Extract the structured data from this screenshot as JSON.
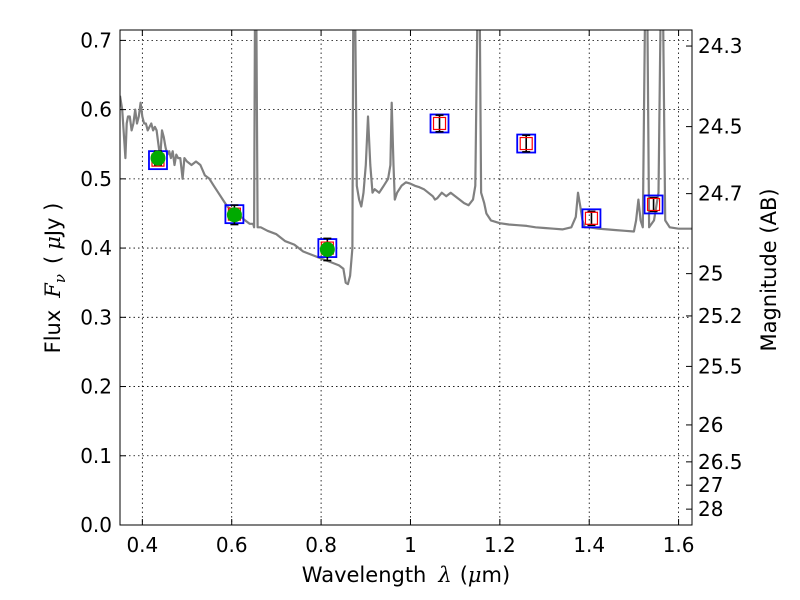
{
  "chart_data": {
    "type": "scatter",
    "title": "",
    "xlabel": {
      "prefix": "Wavelength",
      "symbol": "λ",
      "open": "(",
      "mu": "μ",
      "unit": "m)"
    },
    "ylabel": {
      "prefix": "Flux",
      "symbol": "F",
      "subscript": "ν",
      "open": "(",
      "mu": "μ",
      "unit": "Jy )"
    },
    "y2label": "Magnitude (AB)",
    "xlim": [
      0.35,
      1.63
    ],
    "ylim": [
      0.0,
      0.715
    ],
    "grid": true,
    "x_ticks": [
      {
        "v": 0.4,
        "label": "0.4"
      },
      {
        "v": 0.6,
        "label": "0.6"
      },
      {
        "v": 0.8,
        "label": "0.8"
      },
      {
        "v": 1.0,
        "label": "1"
      },
      {
        "v": 1.2,
        "label": "1.2"
      },
      {
        "v": 1.4,
        "label": "1.4"
      },
      {
        "v": 1.6,
        "label": "1.6"
      }
    ],
    "y_ticks": [
      {
        "v": 0.0,
        "label": "0.0"
      },
      {
        "v": 0.1,
        "label": "0.1"
      },
      {
        "v": 0.2,
        "label": "0.2"
      },
      {
        "v": 0.3,
        "label": "0.3"
      },
      {
        "v": 0.4,
        "label": "0.4"
      },
      {
        "v": 0.5,
        "label": "0.5"
      },
      {
        "v": 0.6,
        "label": "0.6"
      },
      {
        "v": 0.7,
        "label": "0.7"
      }
    ],
    "y2_ticks": [
      {
        "mag": 24.3,
        "label": "24.3"
      },
      {
        "mag": 24.5,
        "label": "24.5"
      },
      {
        "mag": 24.7,
        "label": "24.7"
      },
      {
        "mag": 25.0,
        "label": "25"
      },
      {
        "mag": 25.2,
        "label": "25.2"
      },
      {
        "mag": 25.5,
        "label": "25.5"
      },
      {
        "mag": 26.0,
        "label": "26"
      },
      {
        "mag": 26.5,
        "label": "26.5"
      },
      {
        "mag": 27.0,
        "label": "27"
      },
      {
        "mag": 28.0,
        "label": "28"
      }
    ],
    "colors": {
      "model": "#808080",
      "detected_box": "#0000ff",
      "model_point": "#ff0000",
      "detection_fill": "#00aa00",
      "grid": "#000000"
    },
    "series": [
      {
        "name": "model spectrum",
        "style": "line",
        "points": [
          [
            0.35,
            0.62
          ],
          [
            0.355,
            0.6
          ],
          [
            0.36,
            0.55
          ],
          [
            0.362,
            0.53
          ],
          [
            0.365,
            0.58
          ],
          [
            0.368,
            0.59
          ],
          [
            0.372,
            0.59
          ],
          [
            0.376,
            0.57
          ],
          [
            0.38,
            0.58
          ],
          [
            0.384,
            0.6
          ],
          [
            0.388,
            0.58
          ],
          [
            0.392,
            0.59
          ],
          [
            0.396,
            0.61
          ],
          [
            0.4,
            0.59
          ],
          [
            0.404,
            0.58
          ],
          [
            0.408,
            0.58
          ],
          [
            0.412,
            0.57
          ],
          [
            0.416,
            0.575
          ],
          [
            0.42,
            0.58
          ],
          [
            0.424,
            0.57
          ],
          [
            0.428,
            0.575
          ],
          [
            0.432,
            0.57
          ],
          [
            0.436,
            0.55
          ],
          [
            0.44,
            0.53
          ],
          [
            0.444,
            0.57
          ],
          [
            0.448,
            0.56
          ],
          [
            0.452,
            0.545
          ],
          [
            0.456,
            0.535
          ],
          [
            0.46,
            0.54
          ],
          [
            0.464,
            0.53
          ],
          [
            0.468,
            0.54
          ],
          [
            0.472,
            0.52
          ],
          [
            0.476,
            0.535
          ],
          [
            0.48,
            0.53
          ],
          [
            0.485,
            0.53
          ],
          [
            0.49,
            0.5
          ],
          [
            0.494,
            0.53
          ],
          [
            0.5,
            0.525
          ],
          [
            0.51,
            0.52
          ],
          [
            0.52,
            0.525
          ],
          [
            0.53,
            0.52
          ],
          [
            0.54,
            0.505
          ],
          [
            0.55,
            0.5
          ],
          [
            0.56,
            0.49
          ],
          [
            0.57,
            0.48
          ],
          [
            0.58,
            0.47
          ],
          [
            0.59,
            0.46
          ],
          [
            0.6,
            0.455
          ],
          [
            0.61,
            0.448
          ],
          [
            0.62,
            0.445
          ],
          [
            0.63,
            0.44
          ],
          [
            0.64,
            0.435
          ],
          [
            0.648,
            0.435
          ],
          [
            0.65,
            0.43
          ],
          [
            0.652,
            0.75
          ],
          [
            0.655,
            0.75
          ],
          [
            0.658,
            0.43
          ],
          [
            0.665,
            0.43
          ],
          [
            0.68,
            0.425
          ],
          [
            0.7,
            0.42
          ],
          [
            0.72,
            0.41
          ],
          [
            0.74,
            0.405
          ],
          [
            0.76,
            0.395
          ],
          [
            0.78,
            0.39
          ],
          [
            0.8,
            0.385
          ],
          [
            0.82,
            0.38
          ],
          [
            0.84,
            0.375
          ],
          [
            0.85,
            0.37
          ],
          [
            0.855,
            0.35
          ],
          [
            0.86,
            0.348
          ],
          [
            0.865,
            0.36
          ],
          [
            0.87,
            0.4
          ],
          [
            0.872,
            0.75
          ],
          [
            0.876,
            0.75
          ],
          [
            0.88,
            0.49
          ],
          [
            0.885,
            0.47
          ],
          [
            0.89,
            0.46
          ],
          [
            0.895,
            0.48
          ],
          [
            0.9,
            0.52
          ],
          [
            0.905,
            0.59
          ],
          [
            0.91,
            0.52
          ],
          [
            0.915,
            0.48
          ],
          [
            0.92,
            0.485
          ],
          [
            0.93,
            0.48
          ],
          [
            0.94,
            0.49
          ],
          [
            0.95,
            0.5
          ],
          [
            0.955,
            0.52
          ],
          [
            0.958,
            0.61
          ],
          [
            0.962,
            0.52
          ],
          [
            0.965,
            0.47
          ],
          [
            0.97,
            0.48
          ],
          [
            0.98,
            0.49
          ],
          [
            0.99,
            0.495
          ],
          [
            1.0,
            0.493
          ],
          [
            1.01,
            0.49
          ],
          [
            1.02,
            0.488
          ],
          [
            1.03,
            0.485
          ],
          [
            1.04,
            0.48
          ],
          [
            1.05,
            0.475
          ],
          [
            1.055,
            0.47
          ],
          [
            1.06,
            0.472
          ],
          [
            1.07,
            0.48
          ],
          [
            1.08,
            0.475
          ],
          [
            1.09,
            0.48
          ],
          [
            1.1,
            0.475
          ],
          [
            1.11,
            0.47
          ],
          [
            1.12,
            0.465
          ],
          [
            1.13,
            0.462
          ],
          [
            1.14,
            0.47
          ],
          [
            1.145,
            0.49
          ],
          [
            1.15,
            0.75
          ],
          [
            1.155,
            0.75
          ],
          [
            1.158,
            0.48
          ],
          [
            1.165,
            0.465
          ],
          [
            1.17,
            0.45
          ],
          [
            1.18,
            0.44
          ],
          [
            1.19,
            0.438
          ],
          [
            1.2,
            0.436
          ],
          [
            1.22,
            0.434
          ],
          [
            1.24,
            0.433
          ],
          [
            1.26,
            0.432
          ],
          [
            1.28,
            0.43
          ],
          [
            1.3,
            0.429
          ],
          [
            1.32,
            0.428
          ],
          [
            1.34,
            0.427
          ],
          [
            1.36,
            0.43
          ],
          [
            1.37,
            0.445
          ],
          [
            1.375,
            0.48
          ],
          [
            1.38,
            0.46
          ],
          [
            1.385,
            0.44
          ],
          [
            1.39,
            0.43
          ],
          [
            1.4,
            0.43
          ],
          [
            1.42,
            0.428
          ],
          [
            1.44,
            0.427
          ],
          [
            1.46,
            0.426
          ],
          [
            1.48,
            0.425
          ],
          [
            1.5,
            0.424
          ],
          [
            1.505,
            0.44
          ],
          [
            1.51,
            0.47
          ],
          [
            1.515,
            0.44
          ],
          [
            1.52,
            0.43
          ],
          [
            1.525,
            0.75
          ],
          [
            1.53,
            0.75
          ],
          [
            1.534,
            0.43
          ],
          [
            1.545,
            0.44
          ],
          [
            1.555,
            0.48
          ],
          [
            1.56,
            0.75
          ],
          [
            1.565,
            0.75
          ],
          [
            1.57,
            0.44
          ],
          [
            1.58,
            0.43
          ],
          [
            1.6,
            0.428
          ],
          [
            1.62,
            0.428
          ],
          [
            1.63,
            0.428
          ]
        ]
      },
      {
        "name": "model photometry",
        "style": "open-red-squares",
        "x": [
          0.435,
          0.606,
          0.814,
          1.065,
          1.259,
          1.405,
          1.544
        ],
        "y": [
          0.527,
          0.449,
          0.4,
          0.58,
          0.551,
          0.443,
          0.463
        ]
      },
      {
        "name": "observed detections",
        "style": "filled-green-circles",
        "x": [
          0.435,
          0.606,
          0.814
        ],
        "y": [
          0.53,
          0.448,
          0.398
        ],
        "yerr": [
          0.01,
          0.014,
          0.016
        ]
      },
      {
        "name": "observed upper limits",
        "style": "open-blue-squares",
        "x": [
          1.065,
          1.259,
          1.405,
          1.544
        ],
        "y": [
          0.58,
          0.551,
          0.443,
          0.463
        ],
        "yerr": [
          0.012,
          0.012,
          0.01,
          0.01
        ]
      }
    ]
  }
}
